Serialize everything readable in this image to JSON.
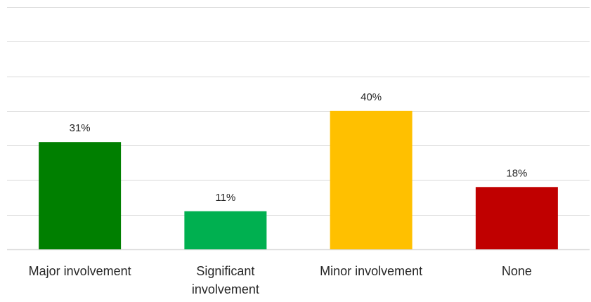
{
  "chart_data": {
    "type": "bar",
    "categories": [
      "Major involvement",
      "Significant involvement",
      "Minor involvement",
      "None"
    ],
    "category_lines": [
      [
        "Major involvement"
      ],
      [
        "Significant",
        "involvement"
      ],
      [
        "Minor involvement"
      ],
      [
        "None"
      ]
    ],
    "values": [
      31,
      11,
      40,
      18
    ],
    "data_labels": [
      "31%",
      "11%",
      "40%",
      "18%"
    ],
    "colors": [
      "#007f00",
      "#00b050",
      "#ffc000",
      "#c00000"
    ],
    "ylim": [
      0,
      70
    ],
    "gridline_step": 10,
    "grid": true,
    "legend": "none",
    "title": "",
    "xlabel": "",
    "ylabel": ""
  }
}
